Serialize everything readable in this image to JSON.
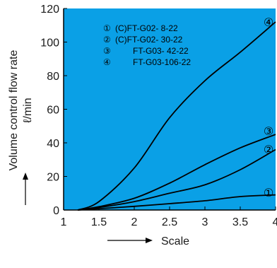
{
  "chart_data": {
    "type": "line",
    "ylabel_line1": "Volume control flow rate",
    "ylabel_line2": "ℓ/min",
    "xlabel": "Scale",
    "xlim": [
      1,
      4
    ],
    "ylim": [
      0,
      120
    ],
    "x_ticks": [
      1,
      1.5,
      2,
      2.5,
      3,
      3.5,
      4
    ],
    "x_tick_labels": [
      "1",
      "1.5",
      "2",
      "2.5",
      "3",
      "3.5",
      "4"
    ],
    "y_ticks": [
      0,
      20,
      40,
      60,
      80,
      100,
      120
    ],
    "y_tick_labels": [
      "0",
      "20",
      "40",
      "60",
      "80",
      "100",
      "120"
    ],
    "grid": false,
    "legend_position": "top",
    "series": [
      {
        "name": "(C)FT-G02- 8-22",
        "marker": "①",
        "points": [
          [
            1.2,
            0
          ],
          [
            1.5,
            0.8
          ],
          [
            2,
            2.2
          ],
          [
            2.5,
            3.8
          ],
          [
            3,
            5.5
          ],
          [
            3.5,
            8
          ],
          [
            4,
            9
          ]
        ]
      },
      {
        "name": "(C)FT-G02- 30-22",
        "marker": "②",
        "points": [
          [
            1.2,
            0
          ],
          [
            1.5,
            1.5
          ],
          [
            2,
            5
          ],
          [
            2.5,
            10
          ],
          [
            3,
            15
          ],
          [
            3.5,
            24
          ],
          [
            4,
            36
          ]
        ]
      },
      {
        "name": "FT-G03- 42-22",
        "marker": "③",
        "points": [
          [
            1.2,
            0
          ],
          [
            1.5,
            2
          ],
          [
            2,
            7
          ],
          [
            2.5,
            16
          ],
          [
            3,
            27
          ],
          [
            3.5,
            37
          ],
          [
            4,
            45
          ]
        ]
      },
      {
        "name": "FT-G03-106-22",
        "marker": "④",
        "points": [
          [
            1.2,
            0
          ],
          [
            1.5,
            5
          ],
          [
            2,
            25
          ],
          [
            2.5,
            55
          ],
          [
            3,
            77
          ],
          [
            3.5,
            94
          ],
          [
            4,
            112
          ]
        ]
      }
    ],
    "colors": {
      "plot_background": "#0aa0e6",
      "line": "#000000",
      "axis": "#000000",
      "text": "#1a1a1a"
    }
  }
}
